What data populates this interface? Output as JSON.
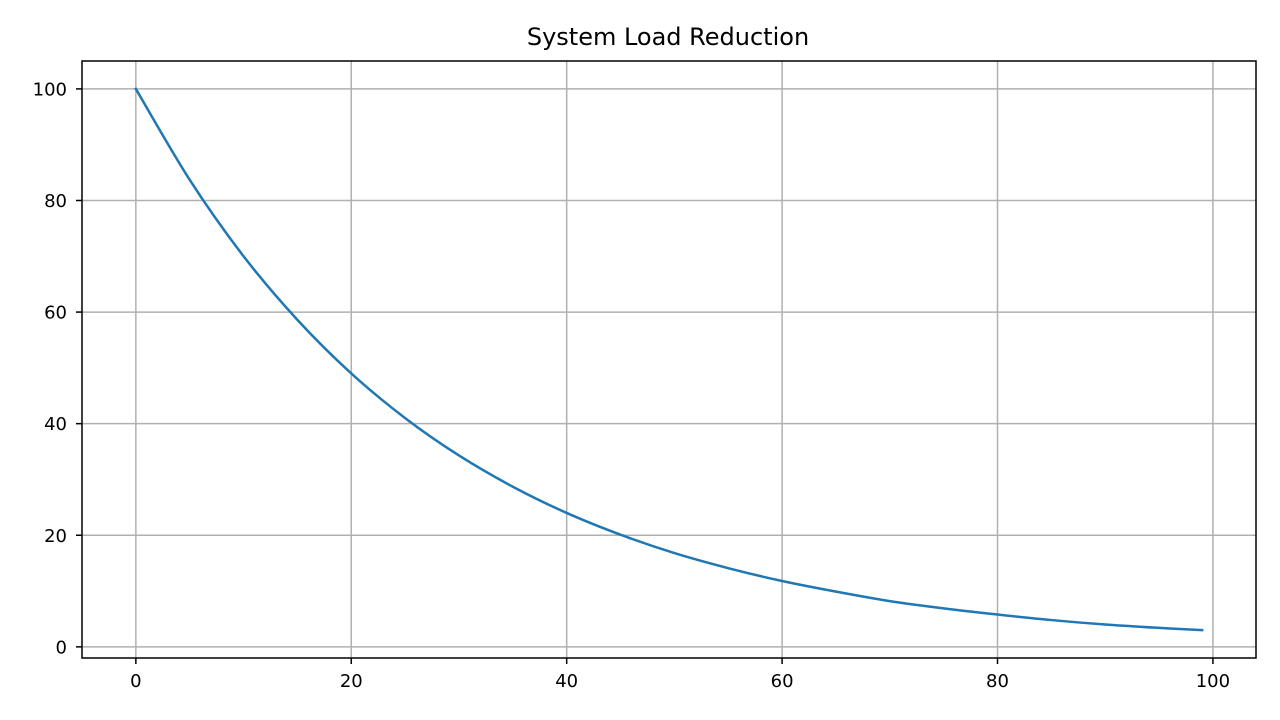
{
  "chart_data": {
    "type": "line",
    "title": "System Load Reduction",
    "xlabel": "",
    "ylabel": "",
    "xlim": [
      -5,
      104
    ],
    "ylim": [
      -2,
      105
    ],
    "x_ticks": [
      0,
      20,
      40,
      60,
      80,
      100
    ],
    "y_ticks": [
      0,
      20,
      40,
      60,
      80,
      100
    ],
    "grid": true,
    "series": [
      {
        "color": "#1f77b4",
        "x": [
          0,
          5,
          10,
          15,
          20,
          25,
          30,
          35,
          40,
          45,
          50,
          55,
          60,
          65,
          70,
          75,
          80,
          85,
          90,
          95,
          99
        ],
        "y": [
          100,
          83.7,
          70.0,
          58.6,
          49.0,
          41.0,
          34.3,
          28.7,
          24.0,
          20.1,
          16.8,
          14.1,
          11.8,
          9.9,
          8.2,
          6.9,
          5.8,
          4.8,
          4.0,
          3.4,
          3.0
        ]
      }
    ]
  }
}
